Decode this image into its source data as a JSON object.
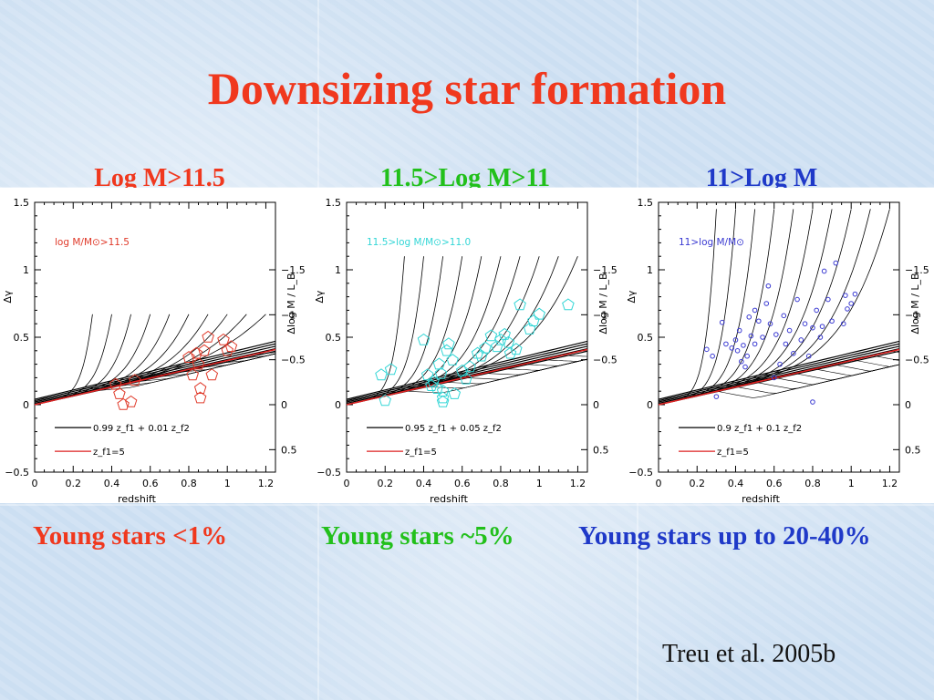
{
  "title": "Downsizing star formation",
  "citation": "Treu et al. 2005b",
  "colors": {
    "red": "#f0381e",
    "green": "#22c01b",
    "blue": "#1f39c8",
    "cyan": "#33d6d6",
    "pointBlue": "#3a3ad2"
  },
  "panels": [
    {
      "subtitle": "Log M>11.5",
      "subtitle_color": "#f0381e",
      "caption": "Young stars <1%",
      "caption_color": "#f0381e"
    },
    {
      "subtitle": "11.5>Log M>11",
      "subtitle_color": "#22c01b",
      "caption": "Young stars ~5%",
      "caption_color": "#22c01b"
    },
    {
      "subtitle": "11>Log M",
      "subtitle_color": "#1f39c8",
      "caption": "Young stars up to 20-40%",
      "caption_color": "#1f39c8"
    }
  ],
  "chart_data": [
    {
      "type": "scatter",
      "xlabel": "redshift",
      "ylabel": "Δγ",
      "ylabel_right": "Δlog M / L_B",
      "xlim": [
        0,
        1.25
      ],
      "ylim": [
        -0.5,
        1.5
      ],
      "xticks": [
        "0",
        "0.2",
        "0.4",
        "0.6",
        "0.8",
        "1",
        "1.2"
      ],
      "yticks": [
        "−0.5",
        "0",
        "0.5",
        "1",
        "1.5"
      ],
      "yticks_right": [
        "0.5",
        "0",
        "−0.5",
        "−1",
        "−1.5"
      ],
      "annotation": "log M/M⊙>11.5",
      "annotation_color": "#e03a2a",
      "legend": [
        {
          "label": "0.99 z_f1 + 0.01 z_f2",
          "color": "#000000"
        },
        {
          "label": "z_f1=5",
          "color": "#dd2222"
        }
      ],
      "burst_height": 0.67,
      "series": [
        {
          "marker": "pentagon",
          "color": "#e03a2a",
          "points": [
            [
              0.42,
              0.15
            ],
            [
              0.44,
              0.08
            ],
            [
              0.46,
              0.0
            ],
            [
              0.5,
              0.02
            ],
            [
              0.52,
              0.18
            ],
            [
              0.8,
              0.35
            ],
            [
              0.82,
              0.22
            ],
            [
              0.84,
              0.38
            ],
            [
              0.85,
              0.3
            ],
            [
              0.86,
              0.12
            ],
            [
              0.86,
              0.05
            ],
            [
              0.88,
              0.4
            ],
            [
              0.9,
              0.5
            ],
            [
              0.92,
              0.22
            ],
            [
              0.98,
              0.48
            ],
            [
              1.0,
              0.4
            ],
            [
              1.02,
              0.43
            ]
          ]
        }
      ]
    },
    {
      "type": "scatter",
      "xlabel": "redshift",
      "ylabel": "Δγ",
      "ylabel_right": "Δlog M / L_B",
      "xlim": [
        0,
        1.25
      ],
      "ylim": [
        -0.5,
        1.5
      ],
      "xticks": [
        "0",
        "0.2",
        "0.4",
        "0.6",
        "0.8",
        "1",
        "1.2"
      ],
      "yticks": [
        "−0.5",
        "0",
        "0.5",
        "1",
        "1.5"
      ],
      "yticks_right": [
        "0.5",
        "0",
        "−0.5",
        "−1",
        "−1.5"
      ],
      "annotation": "11.5>log M/M⊙>11.0",
      "annotation_color": "#33d6d6",
      "legend": [
        {
          "label": "0.95 z_f1 + 0.05 z_f2",
          "color": "#000000"
        },
        {
          "label": "z_f1=5",
          "color": "#dd2222"
        }
      ],
      "burst_height": 1.1,
      "series": [
        {
          "marker": "pentagon",
          "color": "#33d6d6",
          "points": [
            [
              0.18,
              0.22
            ],
            [
              0.2,
              0.03
            ],
            [
              0.23,
              0.26
            ],
            [
              0.4,
              0.48
            ],
            [
              0.42,
              0.22
            ],
            [
              0.44,
              0.14
            ],
            [
              0.45,
              0.17
            ],
            [
              0.47,
              0.12
            ],
            [
              0.48,
              0.3
            ],
            [
              0.49,
              0.23
            ],
            [
              0.5,
              0.1
            ],
            [
              0.5,
              0.05
            ],
            [
              0.5,
              0.02
            ],
            [
              0.52,
              0.4
            ],
            [
              0.53,
              0.45
            ],
            [
              0.55,
              0.33
            ],
            [
              0.56,
              0.08
            ],
            [
              0.6,
              0.25
            ],
            [
              0.62,
              0.19
            ],
            [
              0.64,
              0.28
            ],
            [
              0.68,
              0.38
            ],
            [
              0.7,
              0.36
            ],
            [
              0.72,
              0.42
            ],
            [
              0.75,
              0.51
            ],
            [
              0.78,
              0.43
            ],
            [
              0.8,
              0.48
            ],
            [
              0.82,
              0.52
            ],
            [
              0.84,
              0.46
            ],
            [
              0.85,
              0.38
            ],
            [
              0.88,
              0.41
            ],
            [
              0.9,
              0.74
            ],
            [
              0.95,
              0.56
            ],
            [
              0.97,
              0.62
            ],
            [
              1.0,
              0.67
            ],
            [
              1.15,
              0.74
            ]
          ]
        }
      ]
    },
    {
      "type": "scatter",
      "xlabel": "redshift",
      "ylabel": "Δγ",
      "ylabel_right": "Δlog M / L_B",
      "xlim": [
        0,
        1.25
      ],
      "ylim": [
        -0.5,
        1.5
      ],
      "xticks": [
        "0",
        "0.2",
        "0.4",
        "0.6",
        "0.8",
        "1",
        "1.2"
      ],
      "yticks": [
        "−0.5",
        "0",
        "0.5",
        "1",
        "1.5"
      ],
      "yticks_right": [
        "0.5",
        "0",
        "−0.5",
        "−1",
        "−1.5"
      ],
      "annotation": "11>log M/M⊙",
      "annotation_color": "#3a3ad2",
      "legend": [
        {
          "label": "0.9 z_f1 + 0.1 z_f2",
          "color": "#000000"
        },
        {
          "label": "z_f1=5",
          "color": "#dd2222"
        }
      ],
      "burst_height": 1.45,
      "series": [
        {
          "marker": "circle",
          "color": "#3a3ad2",
          "points": [
            [
              0.25,
              0.41
            ],
            [
              0.28,
              0.36
            ],
            [
              0.3,
              0.06
            ],
            [
              0.33,
              0.61
            ],
            [
              0.35,
              0.45
            ],
            [
              0.38,
              0.42
            ],
            [
              0.4,
              0.48
            ],
            [
              0.41,
              0.4
            ],
            [
              0.42,
              0.55
            ],
            [
              0.43,
              0.32
            ],
            [
              0.44,
              0.44
            ],
            [
              0.45,
              0.28
            ],
            [
              0.46,
              0.36
            ],
            [
              0.47,
              0.65
            ],
            [
              0.48,
              0.51
            ],
            [
              0.5,
              0.7
            ],
            [
              0.5,
              0.45
            ],
            [
              0.52,
              0.62
            ],
            [
              0.54,
              0.5
            ],
            [
              0.56,
              0.75
            ],
            [
              0.57,
              0.88
            ],
            [
              0.58,
              0.6
            ],
            [
              0.6,
              0.2
            ],
            [
              0.61,
              0.52
            ],
            [
              0.63,
              0.3
            ],
            [
              0.65,
              0.66
            ],
            [
              0.66,
              0.45
            ],
            [
              0.68,
              0.55
            ],
            [
              0.7,
              0.38
            ],
            [
              0.72,
              0.78
            ],
            [
              0.74,
              0.48
            ],
            [
              0.76,
              0.6
            ],
            [
              0.78,
              0.36
            ],
            [
              0.8,
              0.57
            ],
            [
              0.82,
              0.7
            ],
            [
              0.84,
              0.5
            ],
            [
              0.85,
              0.58
            ],
            [
              0.86,
              0.99
            ],
            [
              0.88,
              0.78
            ],
            [
              0.9,
              0.62
            ],
            [
              0.92,
              1.05
            ],
            [
              0.96,
              0.6
            ],
            [
              0.97,
              0.81
            ],
            [
              0.98,
              0.71
            ],
            [
              1.0,
              0.75
            ],
            [
              1.02,
              0.82
            ],
            [
              0.8,
              0.02
            ]
          ]
        }
      ]
    }
  ]
}
